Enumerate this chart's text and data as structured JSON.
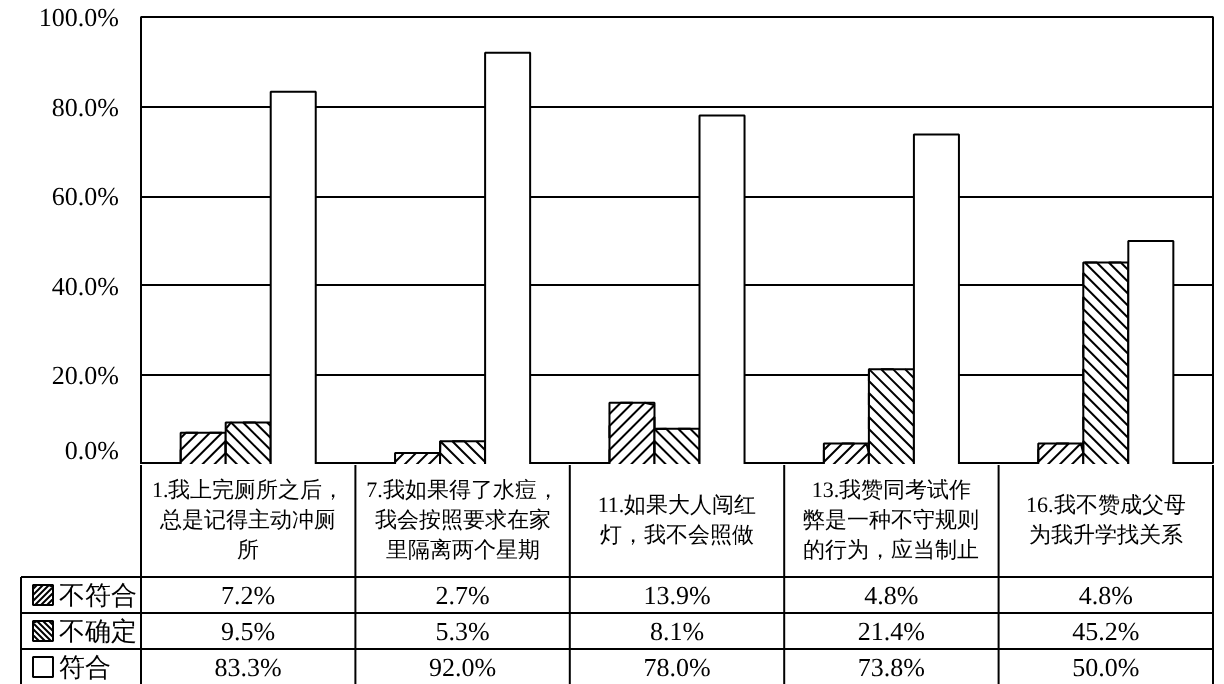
{
  "chart_data": {
    "type": "bar",
    "categories": [
      "1.我上完厕所之后，总是记得主动冲厕所",
      "7.我如果得了水痘，我会按照要求在家里隔离两个星期",
      "11.如果大人闯红灯，我不会照做",
      "13.我赞同考试作弊是一种不守规则的行为，应当制止",
      "16.我不赞成父母为我升学找关系"
    ],
    "series": [
      {
        "name": "不符合",
        "color": "#ffffff",
        "values": [
          7.2,
          2.7,
          13.9,
          4.8,
          4.8
        ],
        "value_labels": [
          "7.2%",
          "2.7%",
          "13.9%",
          "4.8%",
          "4.8%"
        ]
      },
      {
        "name": "不确定",
        "color": "#ffffff",
        "values": [
          9.5,
          5.3,
          8.1,
          21.4,
          45.2
        ],
        "value_labels": [
          "9.5%",
          "5.3%",
          "8.1%",
          "21.4%",
          "45.2%"
        ]
      },
      {
        "name": "符合",
        "color": "#ffffff",
        "values": [
          83.3,
          92.0,
          78.0,
          73.8,
          50.0
        ],
        "value_labels": [
          "83.3%",
          "92.0%",
          "78.0%",
          "73.8%",
          "50.0%"
        ]
      }
    ],
    "ylim": [
      0,
      100
    ],
    "yticks": [
      {
        "value": 0,
        "label": "0.0%"
      },
      {
        "value": 20,
        "label": "20.0%"
      },
      {
        "value": 40,
        "label": "40.0%"
      },
      {
        "value": 60,
        "label": "60.0%"
      },
      {
        "value": 80,
        "label": "80.0%"
      },
      {
        "value": 100,
        "label": "100.0%"
      }
    ],
    "grid": "y",
    "legend": "bottom left"
  }
}
